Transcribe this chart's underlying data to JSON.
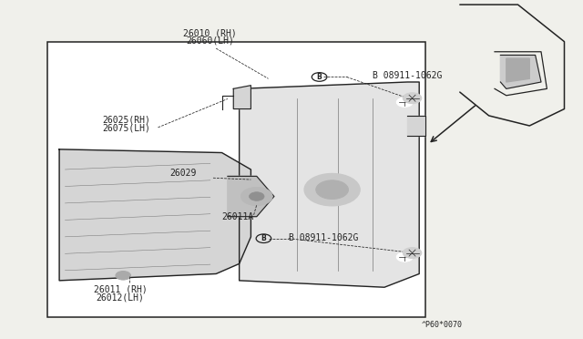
{
  "bg_color": "#f0f0eb",
  "line_color": "#222222",
  "white": "#ffffff",
  "gray_fill": "#e0e0e0",
  "dark_gray": "#aaaaaa",
  "footnote": "^P60*0070",
  "label_top1": "26010 (RH)",
  "label_top2": "26060(LH)",
  "label_b1": "B 08911-1062G",
  "label_25rh": "26025(RH)",
  "label_75lh": "26075(LH)",
  "label_29": "26029",
  "label_11a": "26011A",
  "label_b2": "B 08911-1062G",
  "label_11rh": "26011 (RH)",
  "label_12lh": "26012(LH)",
  "fs": 7.0
}
